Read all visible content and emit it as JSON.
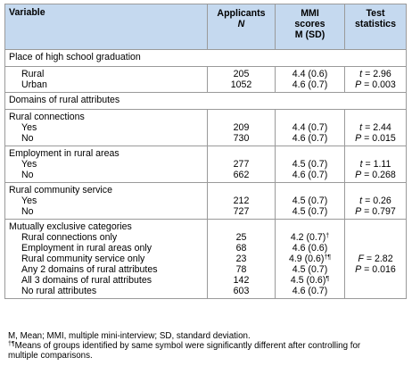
{
  "headers": {
    "variable": "Variable",
    "applicants": "Applicants",
    "applicants_n": "N",
    "mmi": "MMI",
    "mmi_scores": "scores",
    "mmi_msd": "M (SD)",
    "test": "Test",
    "statistics": "statistics"
  },
  "section_hs": {
    "title": "Place of high school graduation",
    "rows": [
      {
        "label": "Rural",
        "n": "205",
        "score": "4.4 (0.6)"
      },
      {
        "label": "Urban",
        "n": "1052",
        "score": "4.6 (0.7)"
      }
    ],
    "t": "t = 2.96",
    "p": "P = 0.003"
  },
  "domains_title": "Domains of rural attributes",
  "rural_connections": {
    "title": "Rural connections",
    "rows": [
      {
        "label": "Yes",
        "n": "209",
        "score": "4.4 (0.7)"
      },
      {
        "label": "No",
        "n": "730",
        "score": "4.6 (0.7)"
      }
    ],
    "t": "t = 2.44",
    "p": "P = 0.015"
  },
  "employment": {
    "title": "Employment in rural areas",
    "rows": [
      {
        "label": "Yes",
        "n": "277",
        "score": "4.5 (0.7)"
      },
      {
        "label": "No",
        "n": "662",
        "score": "4.6 (0.7)"
      }
    ],
    "t": "t = 1.11",
    "p": "P = 0.268"
  },
  "community": {
    "title": "Rural community service",
    "rows": [
      {
        "label": "Yes",
        "n": "212",
        "score": "4.5 (0.7)"
      },
      {
        "label": "No",
        "n": "727",
        "score": "4.5 (0.7)"
      }
    ],
    "t": "t = 0.26",
    "p": "P = 0.797"
  },
  "exclusive": {
    "title": "Mutually exclusive categories",
    "rows": [
      {
        "label": "Rural connections only",
        "n": "25",
        "score": "4.2 (0.7)",
        "sym": "†"
      },
      {
        "label": "Employment in rural areas only",
        "n": "68",
        "score": "4.6 (0.6)",
        "sym": ""
      },
      {
        "label": "Rural community service only",
        "n": "23",
        "score": "4.9 (0.6)",
        "sym": "†¶"
      },
      {
        "label": "Any 2 domains of rural attributes",
        "n": "78",
        "score": "4.5 (0.7)",
        "sym": ""
      },
      {
        "label": "All 3 domains of rural attributes",
        "n": "142",
        "score": "4.5 (0.6)",
        "sym": "¶"
      },
      {
        "label": "No rural attributes",
        "n": "603",
        "score": "4.6 (0.7)",
        "sym": ""
      }
    ],
    "f": "F = 2.82",
    "p": "P = 0.016"
  },
  "footnotes": {
    "line1": "M, Mean; MMI, multiple mini-interview; SD, standard deviation.",
    "line2_sym": "†¶",
    "line2": "Means of groups identified by same symbol were significantly different after controlling for",
    "line3": "multiple comparisons."
  }
}
